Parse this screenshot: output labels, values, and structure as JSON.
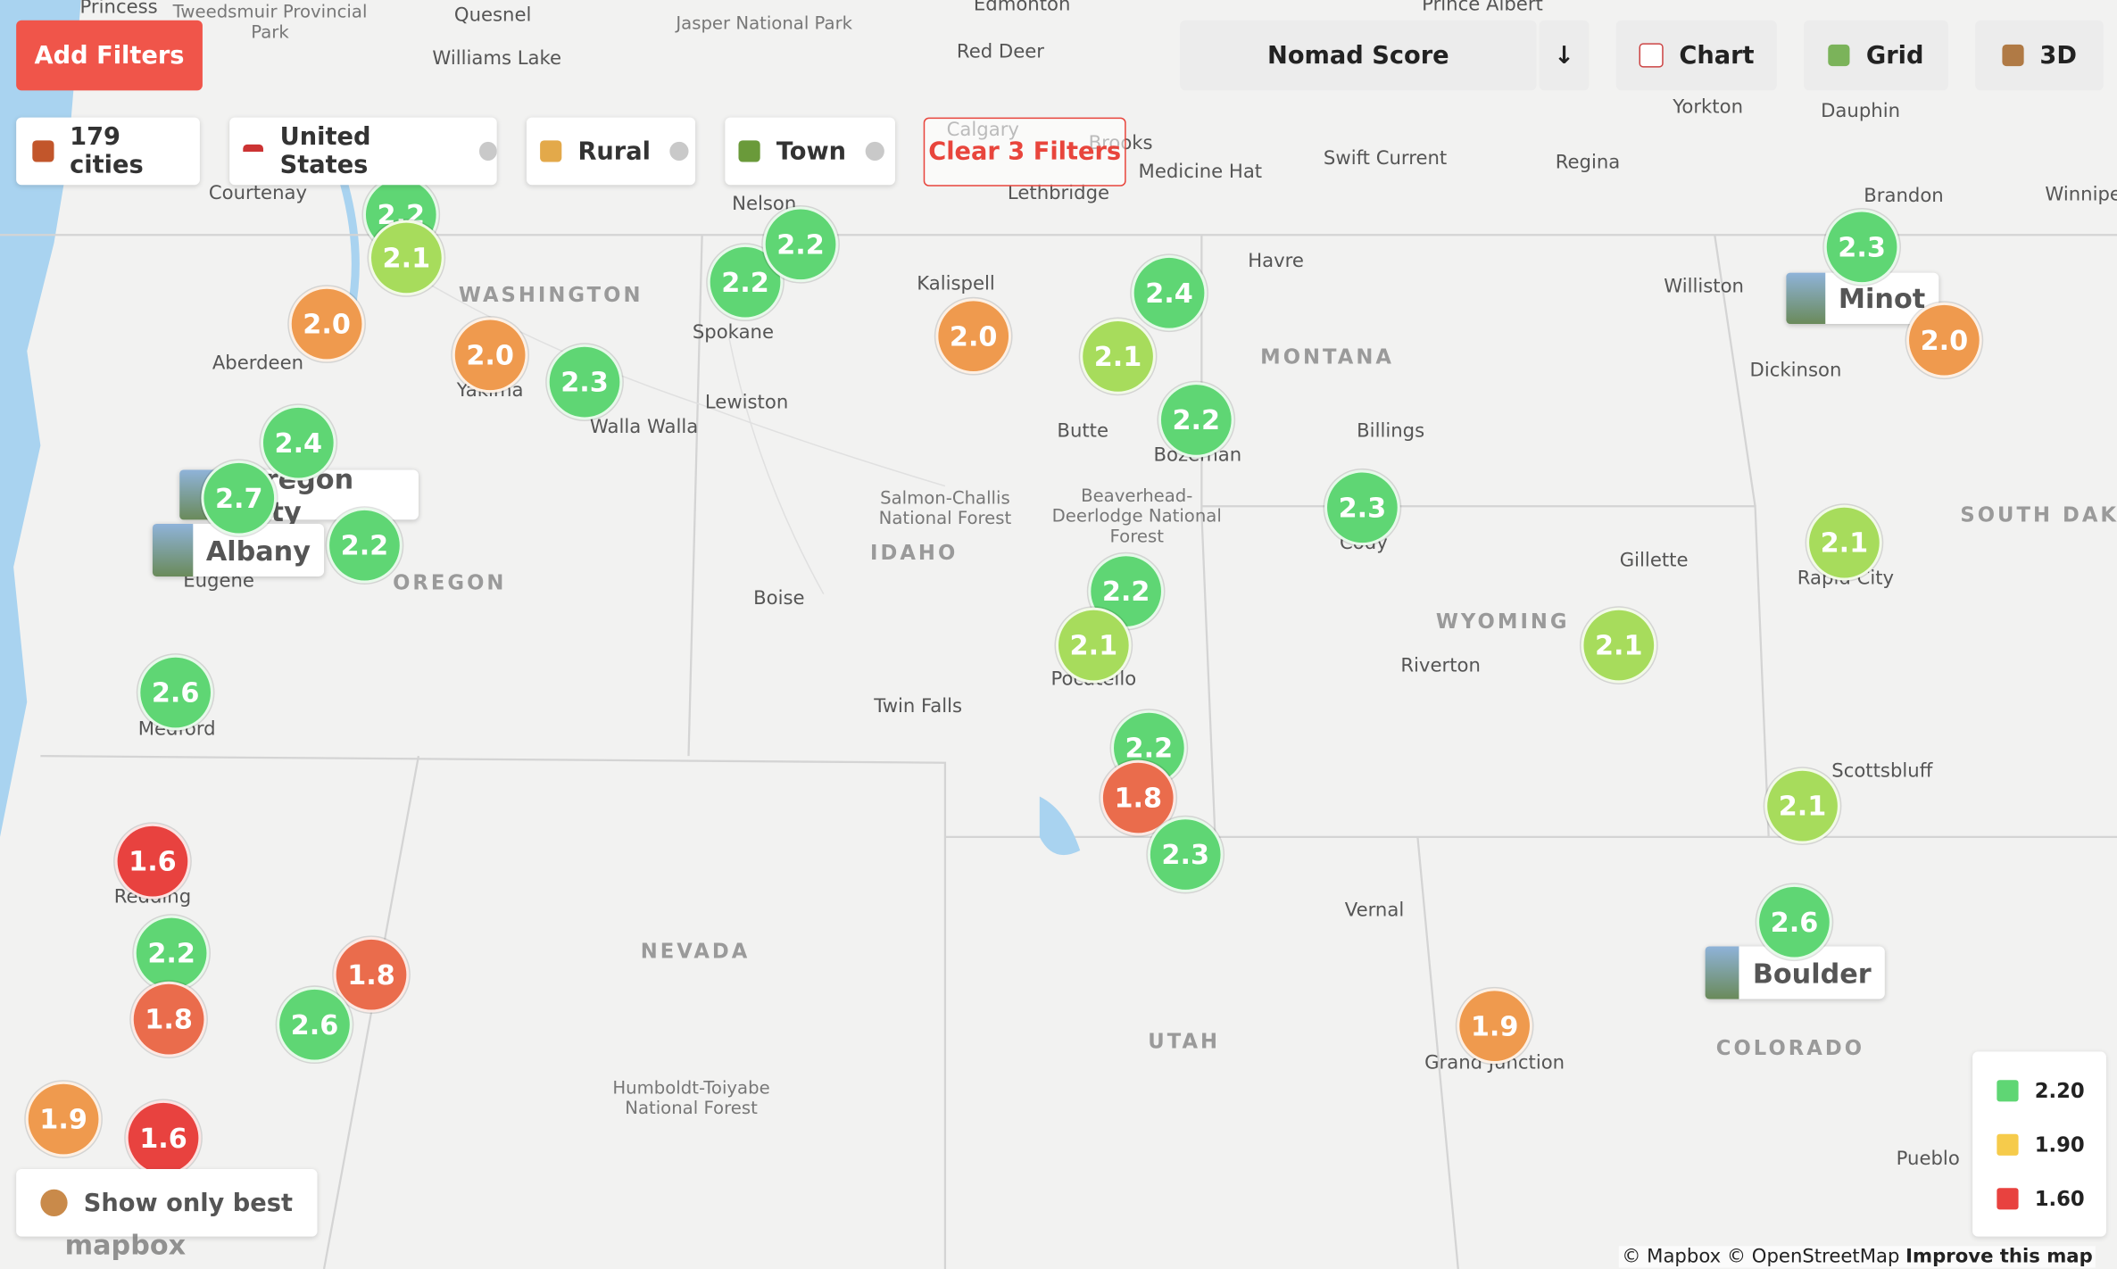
{
  "toolbar": {
    "add_filters": "Add Filters",
    "sort": "Nomad Score",
    "sort_direction": "↓",
    "views": [
      "Chart",
      "Grid",
      "3D"
    ]
  },
  "filters": {
    "count": "179 cities",
    "chips": [
      "United States",
      "Rural",
      "Town"
    ],
    "clear": "Clear 3 Filters"
  },
  "cards": [
    "Oregon City",
    "Albany",
    "Minot",
    "Boulder"
  ],
  "markers": [
    "2.2",
    "2.1",
    "2.0",
    "2.0",
    "2.3",
    "2.4",
    "2.7",
    "2.2",
    "2.6",
    "1.6",
    "2.2",
    "1.8",
    "1.8",
    "2.6",
    "1.9",
    "1.6",
    "2.2",
    "2.2",
    "2.0",
    "2.4",
    "2.1",
    "2.2",
    "2.3",
    "2.2",
    "2.1",
    "2.2",
    "1.8",
    "2.3",
    "1.9",
    "2.1",
    "2.1",
    "2.1",
    "2.6",
    "2.3",
    "2.0"
  ],
  "labels": [
    "Princess",
    "Tweedsmuir Provincial Park",
    "Quesnel",
    "Jasper National Park",
    "Edmonton",
    "Red Deer",
    "Williams Lake",
    "Prince Albert",
    "Yorkton",
    "Dauphin",
    "Calgary",
    "Brooks",
    "Medicine Hat",
    "Swift Current",
    "Regina",
    "Lethbridge",
    "Brandon",
    "Winnipe",
    "Courtenay",
    "Nelson",
    "Kalispell",
    "Havre",
    "Williston",
    "Dickinson",
    "Aberdeen",
    "Yakima",
    "Spokane",
    "Walla Walla",
    "Lewiston",
    "Butte",
    "Bozeman",
    "Billings",
    "WASHINGTON",
    "MONTANA",
    "Salmon-Challis National Forest",
    "Beaverhead-Deerlodge National Forest",
    "IDAHO",
    "OREGON",
    "Eugene",
    "Boise",
    "Cody",
    "Gillette",
    "Rapid City",
    "SOUTH DAKOTA",
    "WYOMING",
    "Riverton",
    "Pocatello",
    "Twin Falls",
    "Medford",
    "Redding",
    "NEVADA",
    "Vernal",
    "Scottsbluff",
    "UTAH",
    "COLORADO",
    "Grand Junction",
    "Humboldt-Toiyabe National Forest",
    "Pueblo"
  ],
  "legend": [
    "2.20",
    "1.90",
    "1.60"
  ],
  "show_best": "Show only best",
  "attribution": "© Mapbox © OpenStreetMap",
  "improve": "Improve this map",
  "logo": "mapbox"
}
